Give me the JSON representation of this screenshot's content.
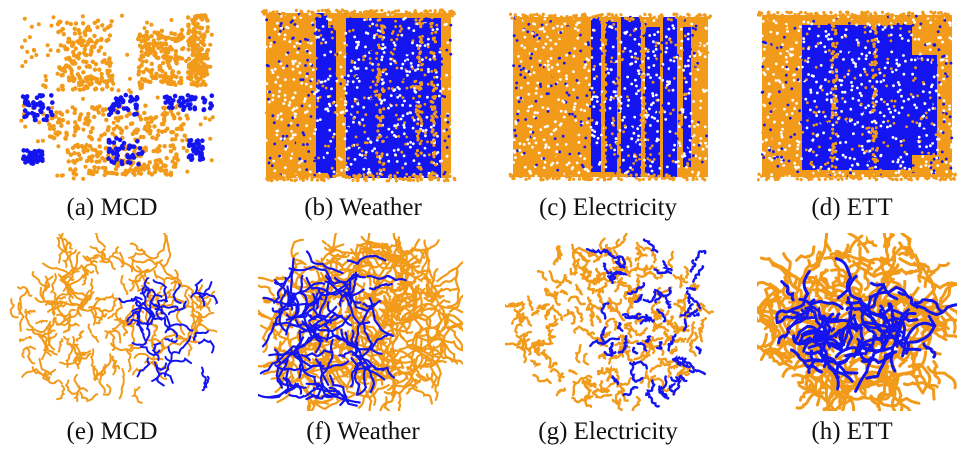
{
  "figure": {
    "colors": {
      "class_a": "#F29A1A",
      "class_b": "#1414F0"
    },
    "panels": [
      {
        "id": "a",
        "caption": "(a) MCD",
        "kind": "grid",
        "dataset": "MCD",
        "row": 1
      },
      {
        "id": "b",
        "caption": "(b) Weather",
        "kind": "grid",
        "dataset": "Weather",
        "row": 1
      },
      {
        "id": "c",
        "caption": "(c) Electricity",
        "kind": "grid",
        "dataset": "Electricity",
        "row": 1
      },
      {
        "id": "d",
        "caption": "(d) ETT",
        "kind": "grid",
        "dataset": "ETT",
        "row": 1
      },
      {
        "id": "e",
        "caption": "(e) MCD",
        "kind": "manifold",
        "dataset": "MCD",
        "row": 2
      },
      {
        "id": "f",
        "caption": "(f) Weather",
        "kind": "manifold",
        "dataset": "Weather",
        "row": 2
      },
      {
        "id": "g",
        "caption": "(g) Electricity",
        "kind": "manifold",
        "dataset": "Electricity",
        "row": 2
      },
      {
        "id": "h",
        "caption": "(h) ETT",
        "kind": "manifold",
        "dataset": "ETT",
        "row": 2
      }
    ]
  },
  "chart_data": [
    {
      "type": "scatter",
      "title": "(a) MCD",
      "xlabel": "",
      "ylabel": "",
      "grid": false,
      "series": [
        {
          "name": "orange class",
          "color": "#F29A1A",
          "description": "sparse clustered blocks, majority of points"
        },
        {
          "name": "blue class",
          "color": "#1414F0",
          "description": "small clusters in middle band and lower center"
        }
      ]
    },
    {
      "type": "scatter",
      "title": "(b) Weather",
      "xlabel": "",
      "ylabel": "",
      "grid": false,
      "series": [
        {
          "name": "orange class",
          "color": "#F29A1A",
          "description": "dense left columns"
        },
        {
          "name": "blue class",
          "color": "#1414F0",
          "description": "dense vertical bands on right half"
        }
      ]
    },
    {
      "type": "scatter",
      "title": "(c) Electricity",
      "xlabel": "",
      "ylabel": "",
      "grid": false,
      "series": [
        {
          "name": "orange class",
          "color": "#F29A1A",
          "description": "dense left block and right edge"
        },
        {
          "name": "blue class",
          "color": "#1414F0",
          "description": "vertical stripes center-right"
        }
      ]
    },
    {
      "type": "scatter",
      "title": "(d) ETT",
      "xlabel": "",
      "ylabel": "",
      "grid": false,
      "series": [
        {
          "name": "orange class",
          "color": "#F29A1A",
          "description": "outer frame, left columns"
        },
        {
          "name": "blue class",
          "color": "#1414F0",
          "description": "dense central square"
        }
      ]
    },
    {
      "type": "scatter",
      "title": "(e) MCD",
      "xlabel": "",
      "ylabel": "",
      "grid": false,
      "series": [
        {
          "name": "orange class",
          "color": "#F29A1A",
          "description": "curved short trajectories, left/center"
        },
        {
          "name": "blue class",
          "color": "#1414F0",
          "description": "curved trajectories, lower right"
        }
      ]
    },
    {
      "type": "scatter",
      "title": "(f) Weather",
      "xlabel": "",
      "ylabel": "",
      "grid": false,
      "series": [
        {
          "name": "orange class",
          "color": "#F29A1A",
          "description": "dense tangled trajectories, right/outer"
        },
        {
          "name": "blue class",
          "color": "#1414F0",
          "description": "tangled trajectories, left-center"
        }
      ]
    },
    {
      "type": "scatter",
      "title": "(g) Electricity",
      "xlabel": "",
      "ylabel": "",
      "grid": false,
      "series": [
        {
          "name": "orange class",
          "color": "#F29A1A",
          "description": "radial dotted arcs"
        },
        {
          "name": "blue class",
          "color": "#1414F0",
          "description": "radial dotted arcs, right half ring"
        }
      ]
    },
    {
      "type": "scatter",
      "title": "(h) ETT",
      "xlabel": "",
      "ylabel": "",
      "grid": false,
      "series": [
        {
          "name": "orange class",
          "color": "#F29A1A",
          "description": "looping blobs around the disc"
        },
        {
          "name": "blue class",
          "color": "#1414F0",
          "description": "diagonal band through center"
        }
      ]
    }
  ]
}
